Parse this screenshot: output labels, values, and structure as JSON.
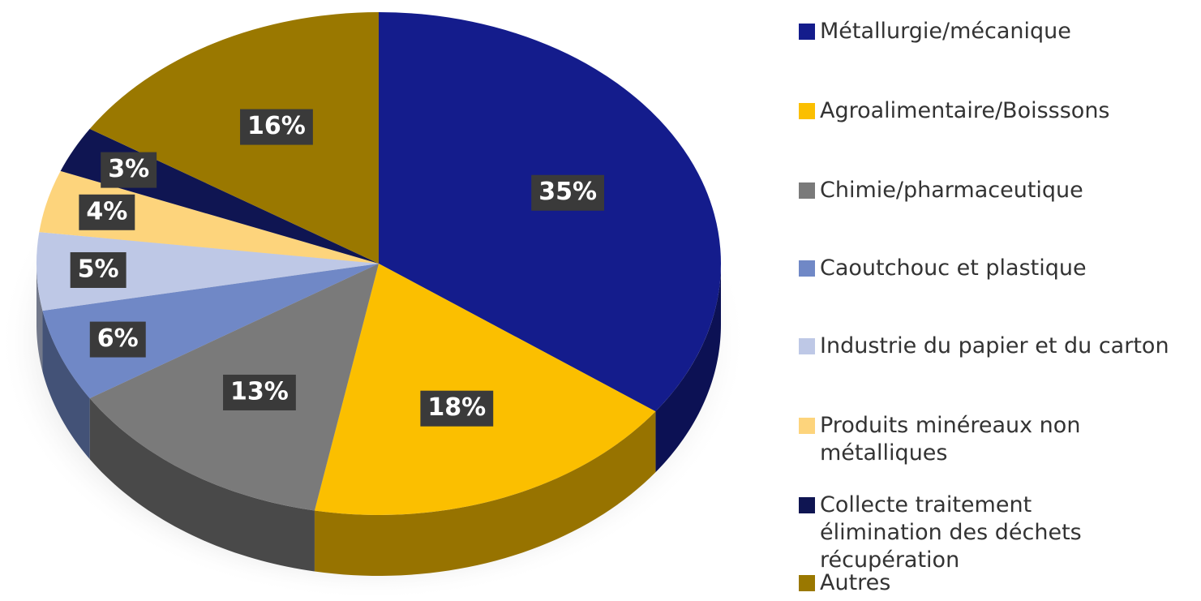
{
  "chart_data": {
    "type": "pie",
    "categories": [
      "Métallurgie/mécanique",
      "Agroalimentaire/Boisssons",
      "Chimie/pharmaceutique",
      "Caoutchouc et plastique",
      "Industrie du papier et du carton",
      "Produits minéreaux non métalliques",
      "Collecte traitement élimination des déchets récupération",
      "Autres"
    ],
    "values": [
      35,
      18,
      13,
      6,
      5,
      4,
      3,
      16
    ],
    "value_labels": [
      "35%",
      "18%",
      "13%",
      "6%",
      "5%",
      "4%",
      "3%",
      "16%"
    ],
    "colors": [
      "#141c8c",
      "#fbbf00",
      "#7a7a7a",
      "#7088c6",
      "#bec8e6",
      "#fdd47c",
      "#0f1552",
      "#9a7800"
    ],
    "legend": "right"
  }
}
